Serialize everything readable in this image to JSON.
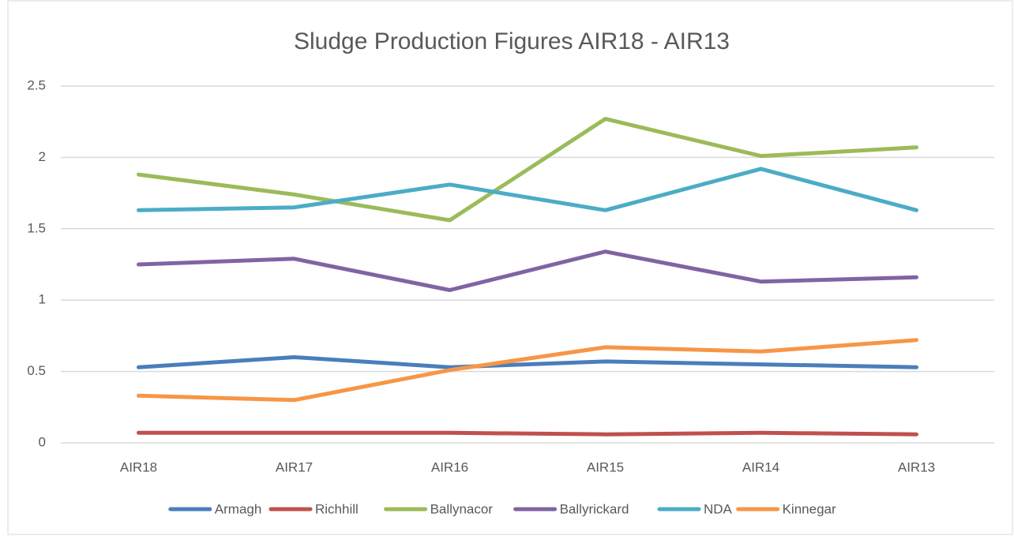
{
  "chart_data": {
    "type": "line",
    "title": "Sludge Production Figures AIR18 - AIR13",
    "categories": [
      "AIR18",
      "AIR17",
      "AIR16",
      "AIR15",
      "AIR14",
      "AIR13"
    ],
    "series": [
      {
        "name": "Armagh",
        "color": "#4a7ebb",
        "values": [
          0.53,
          0.6,
          0.53,
          0.57,
          0.55,
          0.53
        ]
      },
      {
        "name": "Richhill",
        "color": "#c0504d",
        "values": [
          0.07,
          0.07,
          0.07,
          0.06,
          0.07,
          0.06
        ]
      },
      {
        "name": "Ballynacor",
        "color": "#9bbb59",
        "values": [
          1.88,
          1.74,
          1.56,
          2.27,
          2.01,
          2.07
        ]
      },
      {
        "name": "Ballyrickard",
        "color": "#8064a2",
        "values": [
          1.25,
          1.29,
          1.07,
          1.34,
          1.13,
          1.16
        ]
      },
      {
        "name": "NDA",
        "color": "#4bacc6",
        "values": [
          1.63,
          1.65,
          1.81,
          1.63,
          1.92,
          1.63
        ]
      },
      {
        "name": "Kinnegar",
        "color": "#f79646",
        "values": [
          0.33,
          0.3,
          0.51,
          0.67,
          0.64,
          0.72
        ]
      }
    ],
    "ylim": [
      0,
      2.5
    ],
    "yticks": [
      0,
      0.5,
      1,
      1.5,
      2,
      2.5
    ],
    "grid": true,
    "legend": "bottom"
  }
}
